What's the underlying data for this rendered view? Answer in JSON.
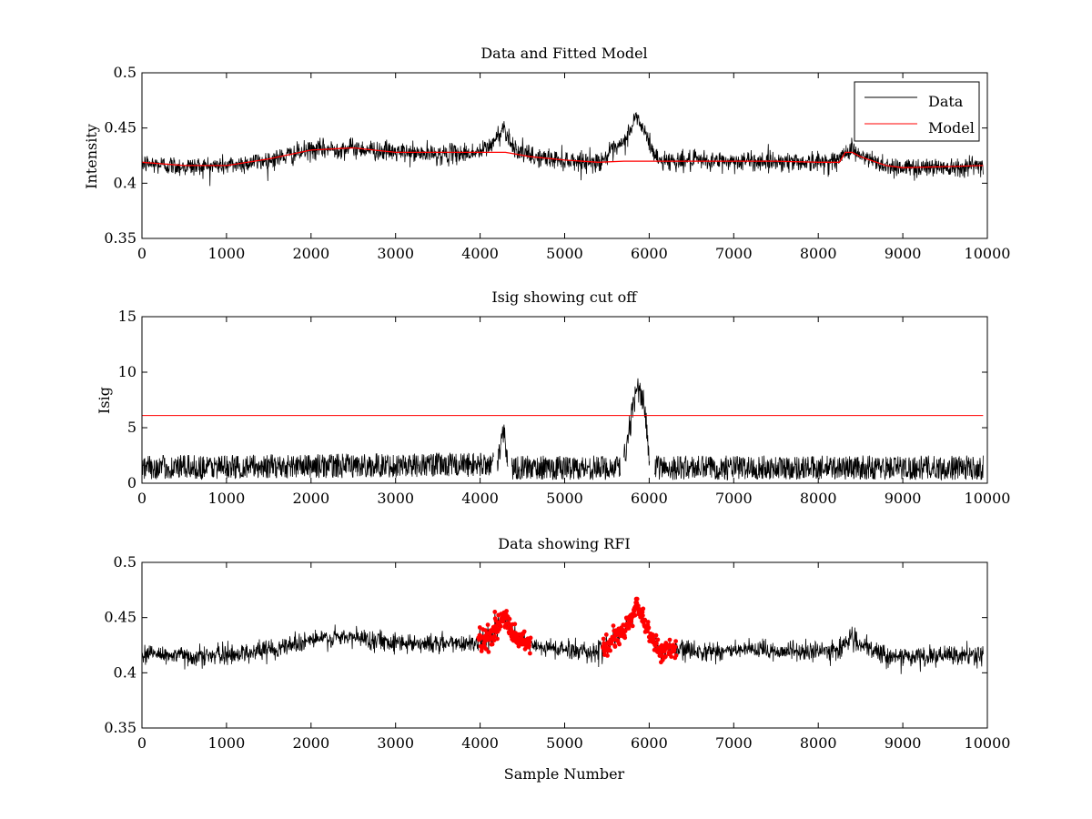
{
  "figure": {
    "colors": {
      "background": "#ffffff",
      "data": "#000000",
      "model": "#ff0000",
      "rfi": "#ff0000",
      "axes": "#000000"
    }
  },
  "chart_data": [
    {
      "type": "line",
      "title": "Data and Fitted Model",
      "xlabel": "",
      "ylabel": "Intensity",
      "xlim": [
        0,
        10000
      ],
      "ylim": [
        0.35,
        0.5
      ],
      "xticks": [
        0,
        1000,
        2000,
        3000,
        4000,
        5000,
        6000,
        7000,
        8000,
        9000,
        10000
      ],
      "yticks": [
        0.35,
        0.4,
        0.45,
        0.5
      ],
      "xtick_labels": [
        "0",
        "1000",
        "2000",
        "3000",
        "4000",
        "5000",
        "6000",
        "7000",
        "8000",
        "9000",
        "10000"
      ],
      "ytick_labels": [
        "0.35",
        "0.4",
        "0.45",
        "0.5"
      ],
      "legend": {
        "location": "top-right",
        "entries": [
          "Data",
          "Model"
        ]
      },
      "series": [
        {
          "name": "Data",
          "color": "#000000",
          "noise_sd": 0.0045,
          "x": [
            0,
            500,
            1000,
            1500,
            2000,
            2500,
            3000,
            3500,
            4000,
            4150,
            4280,
            4400,
            4600,
            5000,
            5400,
            5700,
            5850,
            6000,
            6100,
            6500,
            7000,
            7500,
            8000,
            8250,
            8380,
            8500,
            8800,
            9000,
            9500,
            9950
          ],
          "values": [
            0.418,
            0.415,
            0.416,
            0.421,
            0.43,
            0.432,
            0.428,
            0.426,
            0.428,
            0.436,
            0.451,
            0.432,
            0.424,
            0.421,
            0.419,
            0.436,
            0.461,
            0.437,
            0.421,
            0.42,
            0.42,
            0.42,
            0.419,
            0.421,
            0.433,
            0.424,
            0.416,
            0.414,
            0.415,
            0.416
          ]
        },
        {
          "name": "Model",
          "color": "#ff0000",
          "x": [
            0,
            500,
            1000,
            1500,
            2000,
            2500,
            3000,
            3500,
            4000,
            4250,
            4300,
            4600,
            5000,
            5400,
            5700,
            5750,
            6000,
            6100,
            6500,
            7000,
            7500,
            8000,
            8250,
            8320,
            8400,
            8500,
            8800,
            9000,
            9500,
            9950
          ],
          "values": [
            0.419,
            0.416,
            0.416,
            0.422,
            0.43,
            0.432,
            0.428,
            0.428,
            0.428,
            0.428,
            0.428,
            0.424,
            0.421,
            0.419,
            0.42,
            0.42,
            0.42,
            0.42,
            0.42,
            0.42,
            0.42,
            0.419,
            0.419,
            0.428,
            0.428,
            0.424,
            0.416,
            0.414,
            0.415,
            0.416
          ]
        }
      ]
    },
    {
      "type": "line",
      "title": "Isig showing cut off",
      "xlabel": "",
      "ylabel": "Isig",
      "xlim": [
        0,
        10000
      ],
      "ylim": [
        0,
        15
      ],
      "xticks": [
        0,
        1000,
        2000,
        3000,
        4000,
        5000,
        6000,
        7000,
        8000,
        9000,
        10000
      ],
      "yticks": [
        0,
        5,
        10,
        15
      ],
      "xtick_labels": [
        "0",
        "1000",
        "2000",
        "3000",
        "4000",
        "5000",
        "6000",
        "7000",
        "8000",
        "9000",
        "10000"
      ],
      "ytick_labels": [
        "0",
        "5",
        "10",
        "15"
      ],
      "cutoff": 6.1,
      "series": [
        {
          "name": "Isig",
          "color": "#000000",
          "noise_max": 2.2,
          "gaps": [
            [
              4160,
              4200
            ],
            [
              4330,
              4370
            ],
            [
              5660,
              5700
            ],
            [
              6010,
              6060
            ]
          ],
          "x": [
            0,
            4200,
            4280,
            4330,
            4370,
            5650,
            5700,
            5850,
            5950,
            6010,
            6060,
            9950
          ],
          "values": [
            0.5,
            1.0,
            5.0,
            1.0,
            0.5,
            0.5,
            2.0,
            8.5,
            7.0,
            1.0,
            0.5,
            0.5
          ]
        },
        {
          "name": "Cut off",
          "color": "#ff0000",
          "x": [
            0,
            9950
          ],
          "values": [
            6.1,
            6.1
          ]
        }
      ]
    },
    {
      "type": "line",
      "title": "Data showing RFI",
      "xlabel": "Sample Number",
      "ylabel": "",
      "xlim": [
        0,
        10000
      ],
      "ylim": [
        0.35,
        0.5
      ],
      "xticks": [
        0,
        1000,
        2000,
        3000,
        4000,
        5000,
        6000,
        7000,
        8000,
        9000,
        10000
      ],
      "yticks": [
        0.35,
        0.4,
        0.45,
        0.5
      ],
      "xtick_labels": [
        "0",
        "1000",
        "2000",
        "3000",
        "4000",
        "5000",
        "6000",
        "7000",
        "8000",
        "9000",
        "10000"
      ],
      "ytick_labels": [
        "0.35",
        "0.4",
        "0.45",
        "0.5"
      ],
      "rfi_ranges": [
        [
          3980,
          4600
        ],
        [
          5450,
          6320
        ]
      ],
      "series": [
        {
          "name": "Data",
          "color": "#000000",
          "noise_sd": 0.0045,
          "x": [
            0,
            500,
            1000,
            1500,
            2000,
            2500,
            3000,
            3500,
            4000,
            4150,
            4280,
            4400,
            4600,
            5000,
            5400,
            5700,
            5850,
            6000,
            6100,
            6500,
            7000,
            7500,
            8000,
            8250,
            8380,
            8500,
            8800,
            9000,
            9500,
            9950
          ],
          "values": [
            0.418,
            0.415,
            0.416,
            0.421,
            0.43,
            0.432,
            0.428,
            0.426,
            0.428,
            0.436,
            0.451,
            0.432,
            0.424,
            0.421,
            0.419,
            0.436,
            0.461,
            0.437,
            0.421,
            0.42,
            0.42,
            0.42,
            0.419,
            0.421,
            0.433,
            0.424,
            0.416,
            0.414,
            0.415,
            0.416
          ]
        }
      ]
    }
  ]
}
